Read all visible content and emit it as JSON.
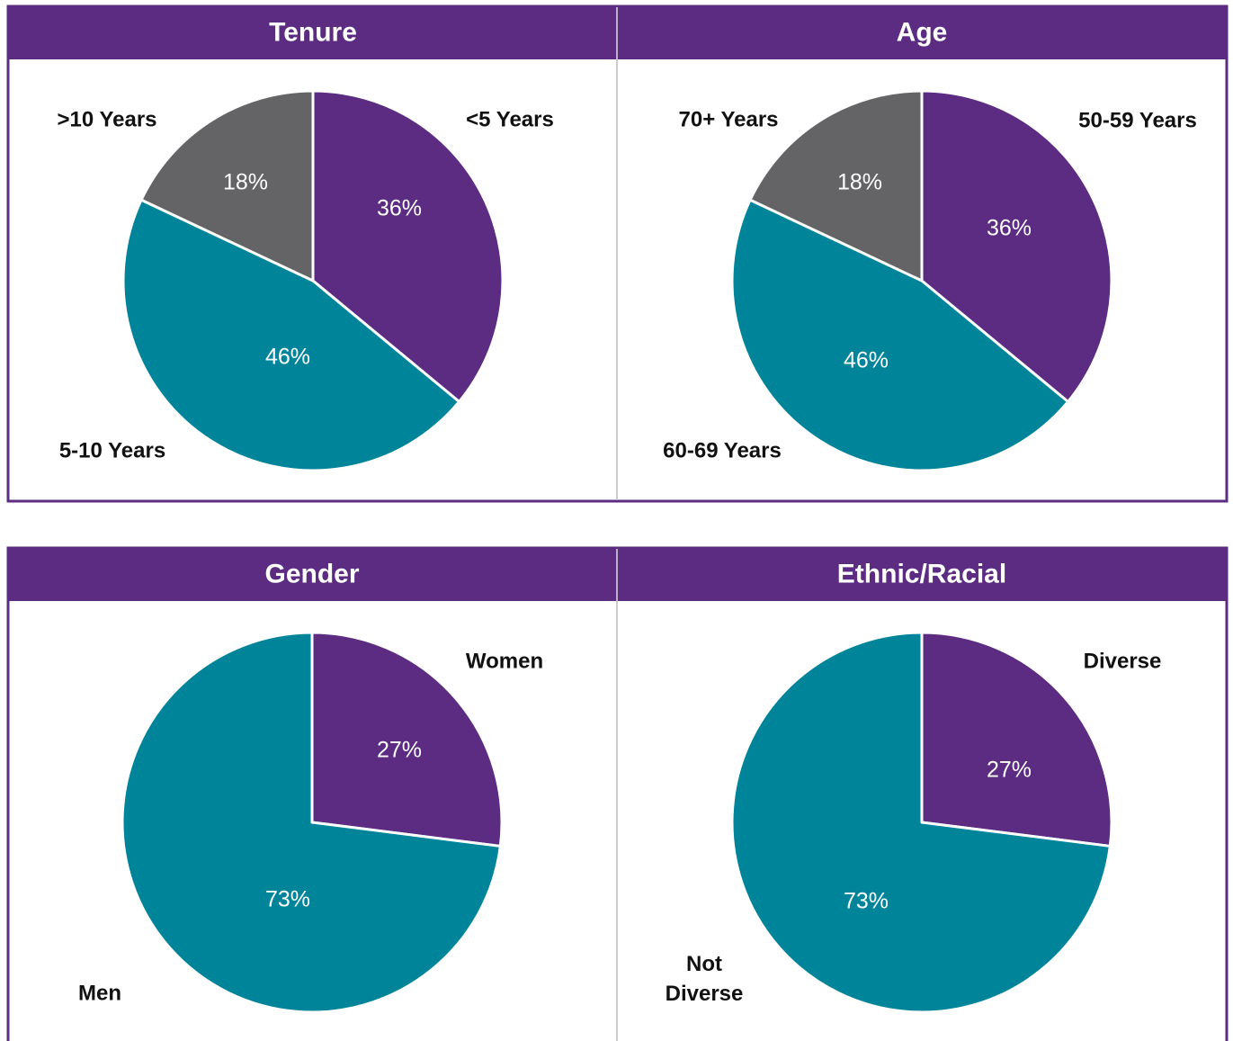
{
  "chart_data": [
    {
      "type": "pie",
      "title": "Tenure",
      "categories": [
        "<5 Years",
        "5-10 Years",
        ">10 Years"
      ],
      "values": [
        36,
        46,
        18
      ],
      "value_labels": [
        "36%",
        "46%",
        "18%"
      ],
      "colors": [
        "#5b2c82",
        "#00849a",
        "#646466"
      ]
    },
    {
      "type": "pie",
      "title": "Age",
      "categories": [
        "50-59 Years",
        "60-69 Years",
        "70+ Years"
      ],
      "values": [
        36,
        46,
        18
      ],
      "value_labels": [
        "36%",
        "46%",
        "18%"
      ],
      "colors": [
        "#5b2c82",
        "#00849a",
        "#646466"
      ]
    },
    {
      "type": "pie",
      "title": "Gender",
      "categories": [
        "Women",
        "Men"
      ],
      "values": [
        27,
        73
      ],
      "value_labels": [
        "27%",
        "73%"
      ],
      "colors": [
        "#5b2c82",
        "#00849a"
      ]
    },
    {
      "type": "pie",
      "title": "Ethnic/Racial",
      "categories": [
        "Diverse",
        "Not Diverse"
      ],
      "values": [
        27,
        73
      ],
      "value_labels": [
        "27%",
        "73%"
      ],
      "colors": [
        "#5b2c82",
        "#00849a"
      ]
    }
  ]
}
